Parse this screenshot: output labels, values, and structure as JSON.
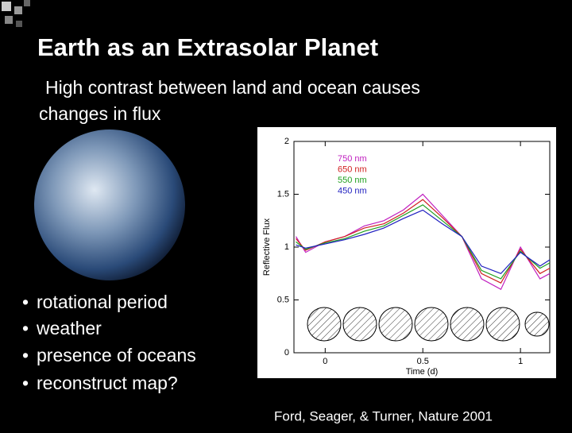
{
  "slide": {
    "title": "Earth as an Extrasolar Planet",
    "subtitle_lines": [
      "High contrast between land and ocean causes",
      "changes in flux"
    ],
    "bullets": [
      "rotational period",
      "weather",
      "presence of oceans",
      "reconstruct map?"
    ],
    "credit": "Ford, Seager, & Turner, Nature 2001"
  },
  "chart_data": {
    "type": "line",
    "x_label": "Time (d)",
    "y_label": "Reflective Flux",
    "x": [
      -0.15,
      -0.1,
      0,
      0.1,
      0.2,
      0.3,
      0.4,
      0.5,
      0.6,
      0.7,
      0.8,
      0.9,
      1.0,
      1.1,
      1.15
    ],
    "xlim": [
      -0.16,
      1.15
    ],
    "xticks": [
      0,
      0.5,
      1
    ],
    "ylim": [
      0,
      2
    ],
    "yticks": [
      0,
      0.5,
      1,
      1.5,
      2
    ],
    "series": [
      {
        "name": "750 nm",
        "color": "#c020c0",
        "values": [
          1.1,
          0.95,
          1.05,
          1.1,
          1.2,
          1.25,
          1.35,
          1.5,
          1.3,
          1.1,
          0.7,
          0.6,
          1.0,
          0.7,
          0.75
        ]
      },
      {
        "name": "650 nm",
        "color": "#d02020",
        "values": [
          1.08,
          0.97,
          1.05,
          1.1,
          1.18,
          1.22,
          1.32,
          1.45,
          1.28,
          1.1,
          0.75,
          0.66,
          0.98,
          0.75,
          0.8
        ]
      },
      {
        "name": "550 nm",
        "color": "#20a020",
        "values": [
          1.05,
          0.98,
          1.04,
          1.08,
          1.15,
          1.2,
          1.3,
          1.4,
          1.25,
          1.1,
          0.78,
          0.7,
          0.96,
          0.8,
          0.85
        ]
      },
      {
        "name": "450 nm",
        "color": "#2020c0",
        "values": [
          1.02,
          0.99,
          1.03,
          1.07,
          1.12,
          1.18,
          1.27,
          1.35,
          1.22,
          1.1,
          0.82,
          0.75,
          0.95,
          0.82,
          0.88
        ]
      }
    ]
  }
}
